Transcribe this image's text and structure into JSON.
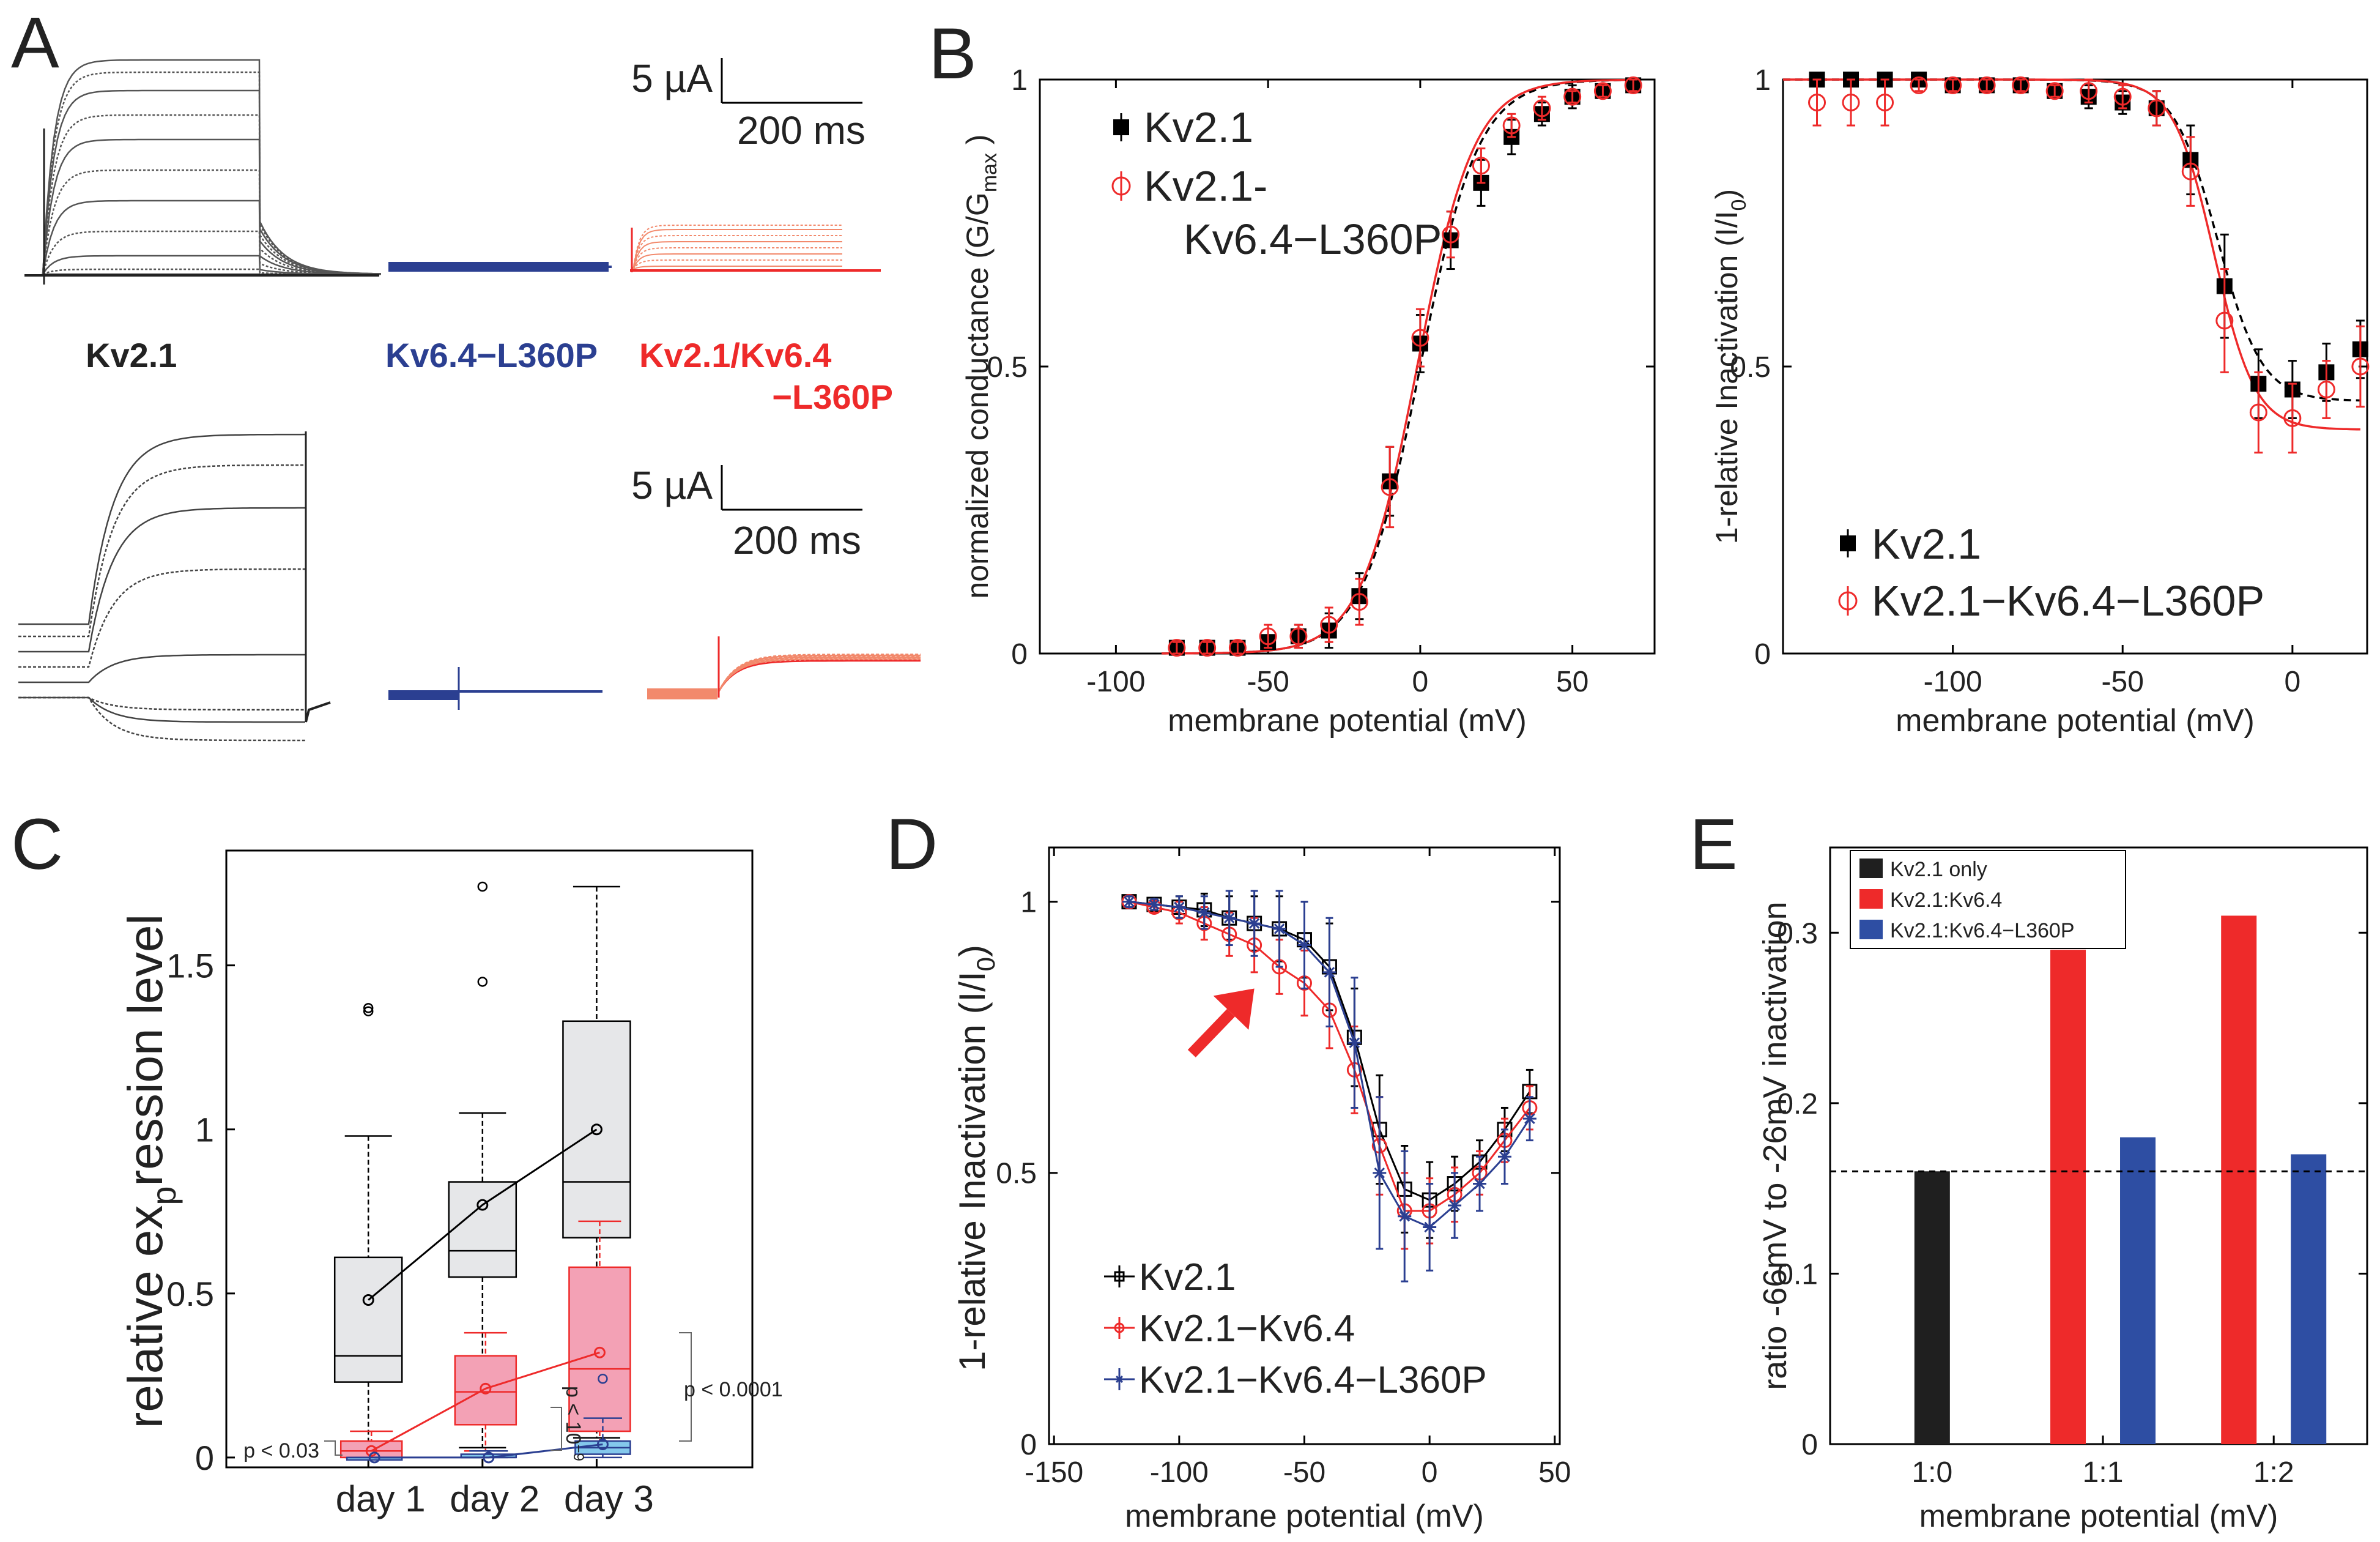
{
  "panel_letters": {
    "a": "A",
    "b": "B",
    "c": "C",
    "d": "D",
    "e": "E"
  },
  "colors": {
    "black": "#000000",
    "blue": "#2b3f91",
    "red": "#ee2a2a",
    "salmon": "#f2896c",
    "gray_box": "#e6e7e9",
    "pink_box": "#f3a1b5",
    "blue_box": "#84c8ec",
    "bar_black": "#1f1f1f",
    "bar_red": "#ee2a2a",
    "bar_blue": "#2e4ea3"
  },
  "traces": {
    "scalebar_top": {
      "y_label": "5 µA",
      "x_label": "200 ms"
    },
    "scalebar_bottom": {
      "y_label": "5 µA",
      "x_label": "200 ms"
    },
    "labels": {
      "kv21": "Kv2.1",
      "kv64": "Kv6.4−L360P",
      "kv2164_line1": "Kv2.1/Kv6.4",
      "kv2164_line2": "−L360P"
    }
  },
  "chart_data": [
    {
      "panel": "B-left",
      "type": "scatter",
      "xlabel": "membrane potential (mV)",
      "ylabel": {
        "main": "normalized conductance (G/G",
        "sub": "max",
        "end": " )"
      },
      "xlim": [
        -125,
        77
      ],
      "ylim": [
        0,
        1
      ],
      "xticks": [
        -100,
        -50,
        0,
        50
      ],
      "yticks": [
        0,
        0.5,
        1
      ],
      "ytick_labels": [
        "0",
        "0.5",
        "1"
      ],
      "legend": [
        "Kv2.1",
        "Kv2.1-",
        "Kv6.4−L360P"
      ],
      "series": [
        {
          "name": "Kv2.1",
          "marker": "filled-square",
          "color": "#000000",
          "x": [
            -80,
            -70,
            -60,
            -50,
            -40,
            -30,
            -20,
            -10,
            0,
            10,
            20,
            30,
            40,
            50,
            60,
            70
          ],
          "y": [
            0.01,
            0.01,
            0.01,
            0.02,
            0.03,
            0.04,
            0.1,
            0.3,
            0.54,
            0.72,
            0.82,
            0.9,
            0.94,
            0.97,
            0.98,
            0.99
          ],
          "err": [
            0.01,
            0.01,
            0.01,
            0.01,
            0.02,
            0.03,
            0.04,
            0.06,
            0.05,
            0.05,
            0.04,
            0.03,
            0.02,
            0.02,
            0.01,
            0.01
          ]
        },
        {
          "name": "Kv2.1-Kv6.4-L360P",
          "marker": "open-circle",
          "color": "#ee2a2a",
          "x": [
            -80,
            -70,
            -60,
            -50,
            -40,
            -30,
            -20,
            -10,
            0,
            10,
            20,
            30,
            40,
            50,
            60,
            70
          ],
          "y": [
            0.01,
            0.01,
            0.01,
            0.03,
            0.03,
            0.05,
            0.09,
            0.29,
            0.55,
            0.73,
            0.85,
            0.92,
            0.95,
            0.97,
            0.98,
            0.99
          ],
          "err": [
            0.01,
            0.01,
            0.01,
            0.02,
            0.02,
            0.03,
            0.04,
            0.07,
            0.05,
            0.04,
            0.03,
            0.02,
            0.02,
            0.01,
            0.01,
            0.01
          ]
        }
      ],
      "fits": [
        {
          "name": "Kv2.1 fit",
          "color": "#000000",
          "dashed": true,
          "v_half": 0,
          "slope": 9.5
        },
        {
          "name": "Kv2.1-Kv6.4-L360P fit",
          "color": "#ee2a2a",
          "dashed": false,
          "v_half": -1,
          "slope": 9.3
        }
      ]
    },
    {
      "panel": "B-right",
      "type": "scatter",
      "xlabel": "membrane potential (mV)",
      "ylabel": {
        "main": "1-relative Inactivation (I/I",
        "sub": "0",
        "end": ")"
      },
      "xlim": [
        -150,
        22
      ],
      "ylim": [
        0,
        1
      ],
      "xticks": [
        -100,
        -50,
        0
      ],
      "yticks": [
        0,
        0.5,
        1
      ],
      "ytick_labels": [
        "0",
        "0.5",
        "1"
      ],
      "legend": [
        "Kv2.1",
        "Kv2.1−Kv6.4−L360P"
      ],
      "series": [
        {
          "name": "Kv2.1",
          "marker": "filled-square",
          "color": "#000000",
          "x": [
            -140,
            -130,
            -120,
            -110,
            -100,
            -90,
            -80,
            -70,
            -60,
            -50,
            -40,
            -30,
            -20,
            -10,
            0,
            10,
            20
          ],
          "y": [
            1.0,
            1.0,
            1.0,
            1.0,
            0.99,
            0.99,
            0.99,
            0.98,
            0.97,
            0.96,
            0.95,
            0.86,
            0.64,
            0.47,
            0.46,
            0.49,
            0.53
          ],
          "err": [
            0.01,
            0.01,
            0.01,
            0.01,
            0.01,
            0.01,
            0.01,
            0.01,
            0.02,
            0.02,
            0.03,
            0.06,
            0.09,
            0.06,
            0.05,
            0.05,
            0.05
          ]
        },
        {
          "name": "Kv2.1−Kv6.4−L360P",
          "marker": "open-circle",
          "color": "#ee2a2a",
          "x": [
            -140,
            -130,
            -120,
            -110,
            -100,
            -90,
            -80,
            -70,
            -60,
            -50,
            -40,
            -30,
            -20,
            -10,
            0,
            10,
            20
          ],
          "y": [
            0.96,
            0.96,
            0.96,
            0.99,
            0.99,
            0.99,
            0.99,
            0.98,
            0.98,
            0.97,
            0.95,
            0.84,
            0.58,
            0.42,
            0.41,
            0.46,
            0.5
          ],
          "err": [
            0.04,
            0.04,
            0.04,
            0.01,
            0.01,
            0.01,
            0.01,
            0.01,
            0.02,
            0.02,
            0.03,
            0.06,
            0.09,
            0.07,
            0.06,
            0.05,
            0.07
          ]
        }
      ],
      "fits": [
        {
          "name": "Kv2.1 fit",
          "color": "#000000",
          "dashed": true,
          "v_half": -22,
          "slope": 6.5,
          "floor": 0.44
        },
        {
          "name": "Kv2.1−Kv6.4−L360P fit",
          "color": "#ee2a2a",
          "dashed": false,
          "v_half": -23,
          "slope": 6.0,
          "floor": 0.39
        }
      ]
    },
    {
      "panel": "C",
      "type": "box",
      "ylabel": "relative ex",
      "ylabel_sub": "p",
      "ylabel_tail": "ression level",
      "categories": [
        "day 1",
        "day 2",
        "day 3"
      ],
      "ylim": [
        -0.03,
        1.85
      ],
      "yticks": [
        0,
        0.5,
        1,
        1.5
      ],
      "ytick_labels": [
        "0",
        "0.5",
        "1",
        "1.5"
      ],
      "series": [
        {
          "name": "Kv2.1",
          "fill": "#e6e7e9",
          "mean_color": "#000000",
          "boxes": [
            {
              "whisker_low": 0.0,
              "q1": 0.23,
              "median": 0.31,
              "q3": 0.61,
              "whisker_high": 0.98,
              "outliers": [
                1.36,
                1.37
              ],
              "mean": 0.48
            },
            {
              "whisker_low": 0.03,
              "q1": 0.55,
              "median": 0.63,
              "q3": 0.84,
              "whisker_high": 1.05,
              "outliers": [
                1.45,
                1.74
              ],
              "mean": 0.77
            },
            {
              "whisker_low": 0.06,
              "q1": 0.67,
              "median": 0.84,
              "q3": 1.33,
              "whisker_high": 1.74,
              "outliers": [],
              "mean": 1.0
            }
          ]
        },
        {
          "name": "Kv2.1-Kv6.4",
          "fill": "#f3a1b5",
          "mean_color": "#ee2a2a",
          "boxes": [
            {
              "whisker_low": 0.0,
              "q1": 0.0,
              "median": 0.02,
              "q3": 0.05,
              "whisker_high": 0.08,
              "outliers": [],
              "mean": 0.02
            },
            {
              "whisker_low": 0.02,
              "q1": 0.1,
              "median": 0.2,
              "q3": 0.31,
              "whisker_high": 0.38,
              "outliers": [],
              "mean": 0.21
            },
            {
              "whisker_low": 0.05,
              "q1": 0.08,
              "median": 0.27,
              "q3": 0.58,
              "whisker_high": 0.72,
              "outliers": [],
              "mean": 0.32
            }
          ]
        },
        {
          "name": "Kv2.1-Kv6.4-L360P",
          "fill": "#84c8ec",
          "mean_color": "#2b3f91",
          "boxes": [
            {
              "whisker_low": 0.0,
              "q1": 0.0,
              "median": 0.0,
              "q3": 0.0,
              "whisker_high": 0.0,
              "outliers": [],
              "mean": 0.0
            },
            {
              "whisker_low": 0.0,
              "q1": 0.0,
              "median": 0.0,
              "q3": 0.01,
              "whisker_high": 0.02,
              "outliers": [],
              "mean": 0.0
            },
            {
              "whisker_low": 0.0,
              "q1": 0.01,
              "median": 0.03,
              "q3": 0.05,
              "whisker_high": 0.12,
              "outliers": [
                0.24
              ],
              "mean": 0.04
            }
          ]
        }
      ],
      "annotations": {
        "p1": "p < 0.03",
        "p2_main": "p < 10",
        "p2_exp": "−9",
        "p3": "p < 0.0001"
      }
    },
    {
      "panel": "D",
      "type": "line",
      "xlabel": "membrane potential (mV)",
      "ylabel": {
        "main": "1-relative Inactivation (I/I",
        "sub": "0",
        "end": ")"
      },
      "xlim": [
        -152,
        52
      ],
      "ylim": [
        0,
        1.1
      ],
      "xticks": [
        -150,
        -100,
        -50,
        0,
        50
      ],
      "yticks": [
        0,
        0.5,
        1
      ],
      "ytick_labels": [
        "0",
        "0.5",
        "1"
      ],
      "legend": [
        "Kv2.1",
        "Kv2.1−Kv6.4",
        "Kv2.1−Kv6.4−L360P"
      ],
      "x": [
        -120,
        -110,
        -100,
        -90,
        -80,
        -70,
        -60,
        -50,
        -40,
        -30,
        -20,
        -10,
        0,
        10,
        20,
        30,
        40
      ],
      "series": [
        {
          "name": "Kv2.1",
          "color": "#000000",
          "marker": "open-square",
          "y": [
            1.0,
            0.995,
            0.99,
            0.985,
            0.97,
            0.96,
            0.95,
            0.93,
            0.88,
            0.75,
            0.58,
            0.47,
            0.45,
            0.48,
            0.52,
            0.58,
            0.65
          ],
          "err": [
            0.01,
            0.01,
            0.02,
            0.03,
            0.04,
            0.05,
            0.06,
            0.07,
            0.08,
            0.09,
            0.1,
            0.08,
            0.07,
            0.05,
            0.04,
            0.04,
            0.04
          ]
        },
        {
          "name": "Kv2.1−Kv6.4",
          "color": "#ee2a2a",
          "marker": "open-circle",
          "y": [
            1.0,
            0.99,
            0.98,
            0.96,
            0.94,
            0.92,
            0.88,
            0.85,
            0.8,
            0.69,
            0.55,
            0.43,
            0.43,
            0.46,
            0.5,
            0.56,
            0.62
          ],
          "err": [
            0.01,
            0.01,
            0.02,
            0.03,
            0.04,
            0.05,
            0.05,
            0.06,
            0.07,
            0.08,
            0.09,
            0.07,
            0.06,
            0.05,
            0.04,
            0.04,
            0.04
          ]
        },
        {
          "name": "Kv2.1−Kv6.4−L360P",
          "color": "#2b3f91",
          "marker": "star",
          "y": [
            1.0,
            0.995,
            0.99,
            0.98,
            0.97,
            0.96,
            0.95,
            0.92,
            0.87,
            0.74,
            0.5,
            0.42,
            0.4,
            0.44,
            0.48,
            0.53,
            0.6
          ],
          "err": [
            0.01,
            0.01,
            0.02,
            0.03,
            0.05,
            0.06,
            0.07,
            0.08,
            0.1,
            0.12,
            0.14,
            0.12,
            0.08,
            0.06,
            0.05,
            0.05,
            0.04
          ]
        }
      ],
      "arrow": {
        "from_x": -95,
        "from_y": 0.72,
        "to_x": -70,
        "to_y": 0.84,
        "color": "#ee2a2a"
      }
    },
    {
      "panel": "E",
      "type": "bar",
      "xlabel": "membrane potential (mV)",
      "ylabel": "ratio -66mV to -26mV inactivation",
      "categories": [
        "1:0",
        "1:1",
        "1:2"
      ],
      "ylim": [
        0,
        0.35
      ],
      "yticks": [
        0,
        0.1,
        0.2,
        0.3
      ],
      "ytick_labels": [
        "0",
        "0.1",
        "0.2",
        "0.3"
      ],
      "series": [
        {
          "name": "Kv2.1 only",
          "color": "#1f1f1f",
          "values": [
            0.16,
            null,
            null
          ]
        },
        {
          "name": "Kv2.1:Kv6.4",
          "color": "#ee2a2a",
          "values": [
            null,
            0.29,
            0.31
          ]
        },
        {
          "name": "Kv2.1:Kv6.4−L360P",
          "color": "#2e4ea3",
          "values": [
            null,
            0.18,
            0.17
          ]
        }
      ],
      "reference_line": 0.16
    }
  ]
}
